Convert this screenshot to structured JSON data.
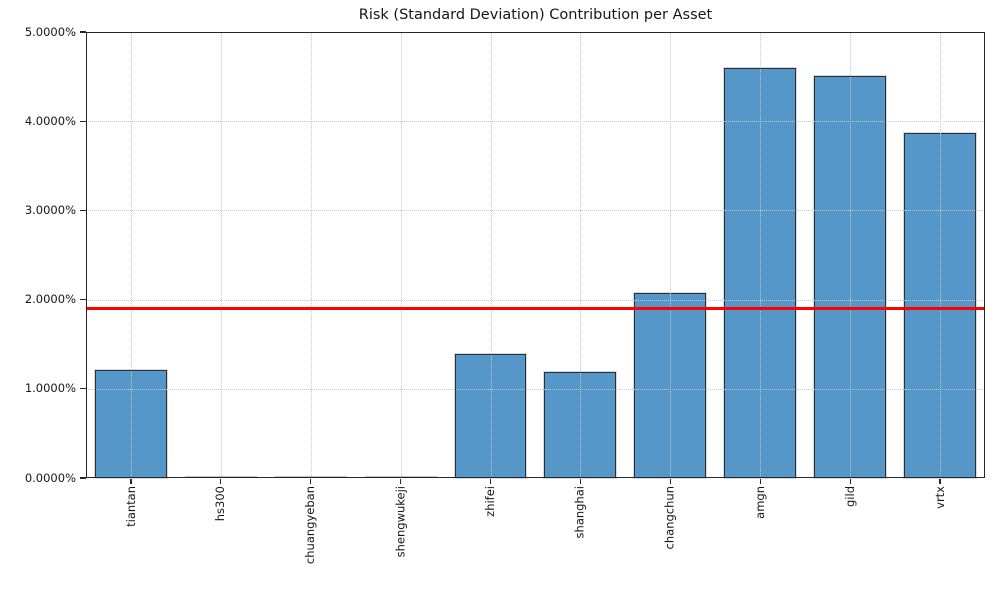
{
  "chart_data": {
    "type": "bar",
    "title": "Risk (Standard Deviation) Contribution per Asset",
    "xlabel": "",
    "ylabel": "",
    "categories": [
      "tiantan",
      "hs300",
      "chuangyeban",
      "shengwukeji",
      "zhifei",
      "shanghai",
      "changchun",
      "amgn",
      "gild",
      "vrtx"
    ],
    "values": [
      1.21,
      0.0,
      0.0,
      0.0,
      1.39,
      1.19,
      2.07,
      4.6,
      4.51,
      3.87
    ],
    "values_unit": "percent",
    "ylim": [
      0,
      5
    ],
    "ytick_labels": [
      "0.0000%",
      "1.0000%",
      "2.0000%",
      "3.0000%",
      "4.0000%",
      "5.0000%"
    ],
    "ytick_values": [
      0,
      1,
      2,
      3,
      4,
      5
    ],
    "reference_line": {
      "value": 1.9,
      "color": "#ff0000",
      "style": "solid"
    },
    "legend": "none",
    "grid": {
      "which": "both",
      "style": "dotted",
      "color": "#c9c9c9",
      "above_bars": true
    },
    "bar_fill_color": "#5597c9",
    "bar_edge_color": "#2b2f33",
    "x_label_rotation_deg": 90
  }
}
